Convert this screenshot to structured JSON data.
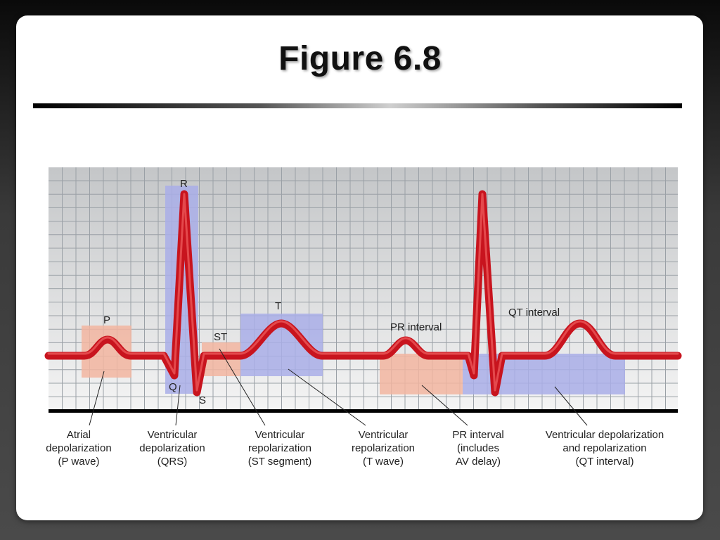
{
  "slide": {
    "title": "Figure 6.8"
  },
  "labels": {
    "p": "P",
    "r": "R",
    "q": "Q",
    "s": "S",
    "st": "ST",
    "t": "T",
    "pr_interval": "PR interval",
    "qt_interval": "QT interval"
  },
  "callouts": {
    "atrial": [
      "Atrial",
      "depolarization",
      "(P wave)"
    ],
    "qrs": [
      "Ventricular",
      "depolarization",
      "(QRS)"
    ],
    "st": [
      "Ventricular",
      "repolarization",
      "(ST segment)"
    ],
    "t": [
      "Ventricular",
      "repolarization",
      "(T wave)"
    ],
    "pr": [
      "PR interval",
      "(includes",
      "AV delay)"
    ],
    "qt": [
      "Ventricular depolarization",
      "and repolarization",
      "(QT interval)"
    ]
  },
  "colors": {
    "trace": "#c8141e",
    "trace_highlight": "#f06060",
    "pink_box": "#f2b5a0",
    "blue_box": "#a9aee8",
    "grid_line": "#9aa0a6",
    "grid_bg_top": "#c4c6c8",
    "grid_bg_bottom": "#f4f4f4"
  }
}
